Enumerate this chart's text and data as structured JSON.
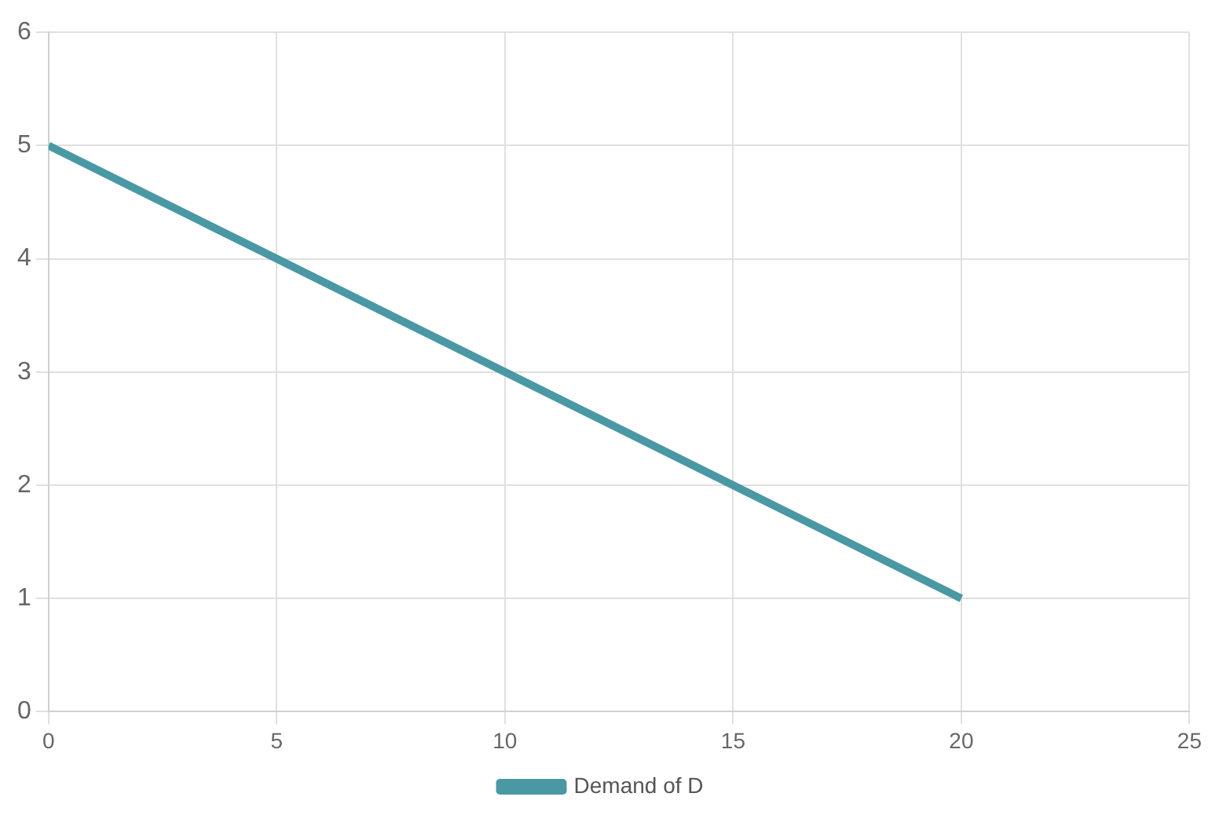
{
  "chart_data": {
    "type": "line",
    "x": [
      0,
      5,
      10,
      15,
      20
    ],
    "series": [
      {
        "name": "Demand of D",
        "color": "#4a98a4",
        "values": [
          5,
          4,
          3,
          2,
          1
        ]
      }
    ],
    "xlim": [
      0,
      25
    ],
    "xticks": [
      0,
      5,
      10,
      15,
      20,
      25
    ],
    "ylim": [
      0,
      6
    ],
    "yticks": [
      0,
      1,
      2,
      3,
      4,
      5,
      6
    ],
    "grid": true,
    "legend": "bottom",
    "marker": "none",
    "line_style": "solid"
  }
}
